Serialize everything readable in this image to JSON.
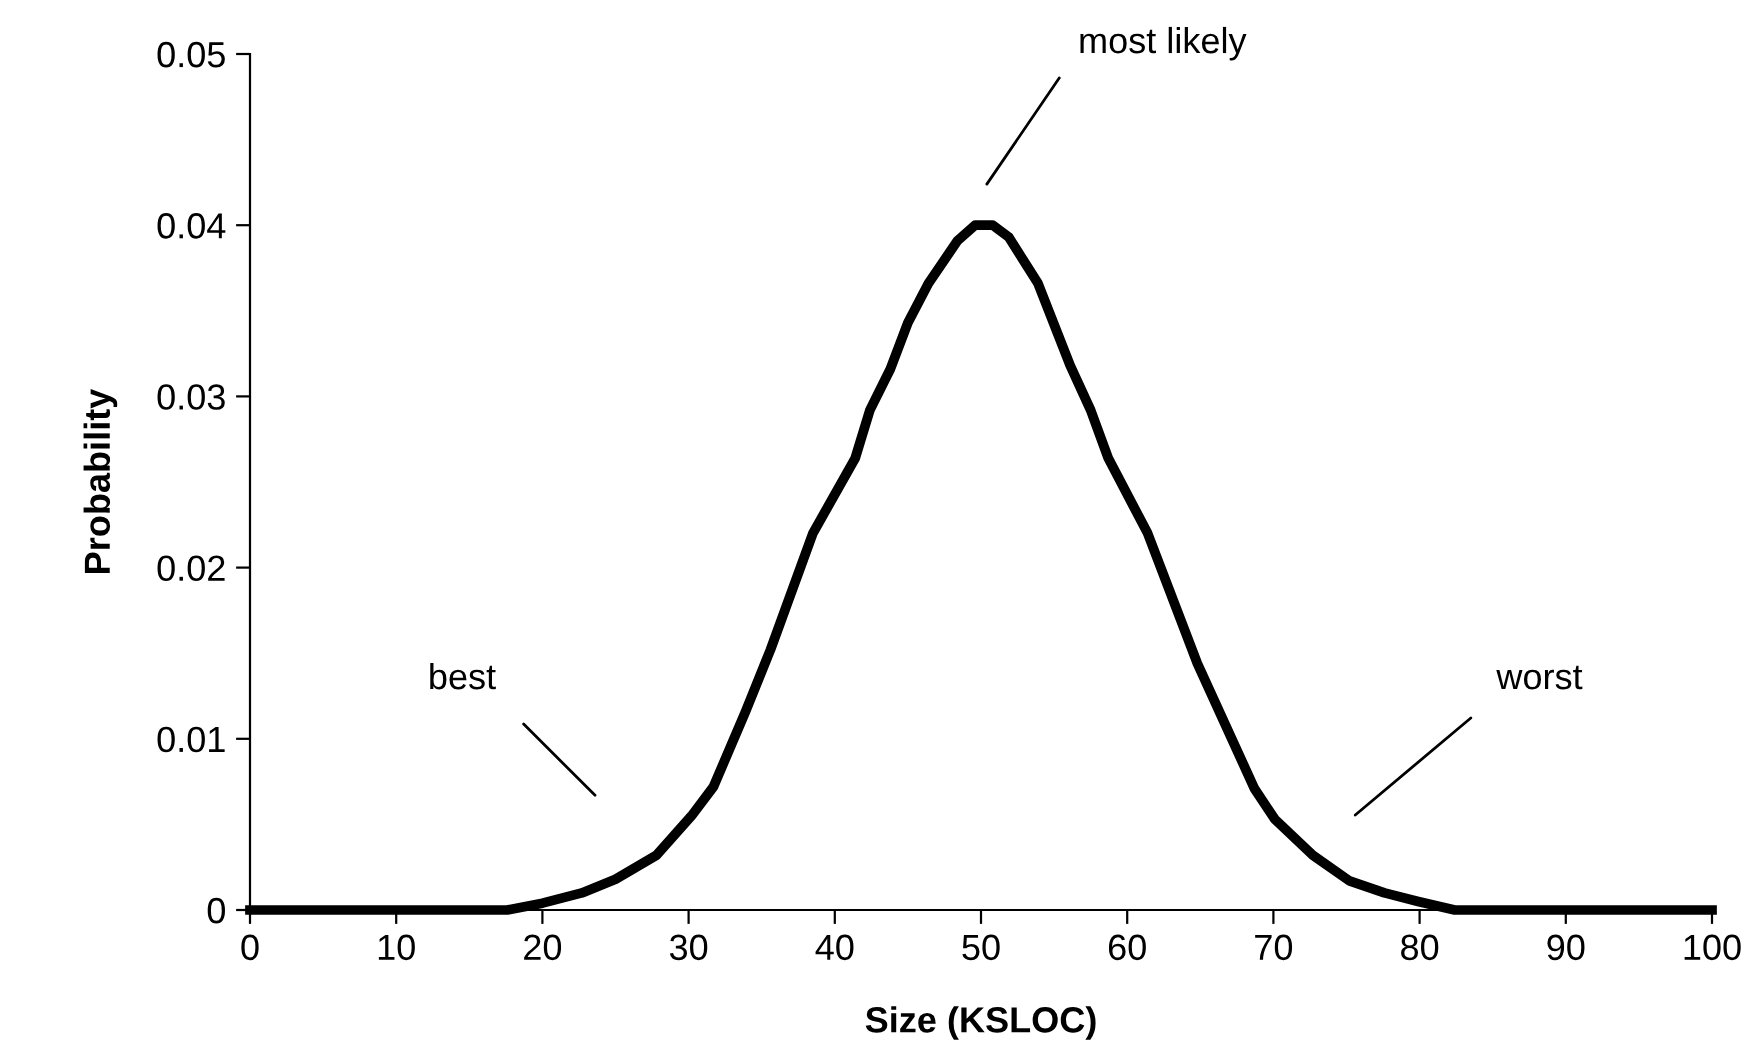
{
  "chart_data": {
    "type": "line",
    "xlabel": "Size (KSLOC)",
    "ylabel": "Probability",
    "series": [
      {
        "color": "#000000",
        "x": [
          0,
          17.6,
          20,
          22.7,
          25,
          27.8,
          30.2,
          31.7,
          33.9,
          35.6,
          38.5,
          41.4,
          42.4,
          43.8,
          45,
          46.4,
          48.4,
          49.6,
          50.8,
          51.9,
          53.9,
          56.1,
          57.5,
          58.7,
          61.4,
          64.8,
          68.7,
          70.1,
          72.7,
          75.2,
          77.6,
          79.9,
          82.4,
          100
        ],
        "values": [
          0,
          0,
          0.0004,
          0.001,
          0.0018,
          0.0032,
          0.0055,
          0.0072,
          0.0116,
          0.0152,
          0.022,
          0.0264,
          0.0292,
          0.0316,
          0.0343,
          0.0366,
          0.0391,
          0.04,
          0.04,
          0.0393,
          0.0366,
          0.0318,
          0.0292,
          0.0264,
          0.022,
          0.0144,
          0.0071,
          0.0053,
          0.0032,
          0.0017,
          0.001,
          0.0005,
          0,
          0
        ]
      }
    ],
    "annotations": [
      "best",
      "most likely",
      "worst"
    ],
    "xlim": [
      0,
      100
    ],
    "xticks": [
      0,
      10,
      20,
      30,
      40,
      50,
      60,
      70,
      80,
      90,
      100
    ],
    "ylim": [
      0,
      0.05
    ],
    "yticks": [
      0,
      0.01,
      0.02,
      0.03,
      0.04,
      0.05
    ],
    "grid": false,
    "legend": false,
    "marker": "none",
    "line_style": "solid"
  }
}
